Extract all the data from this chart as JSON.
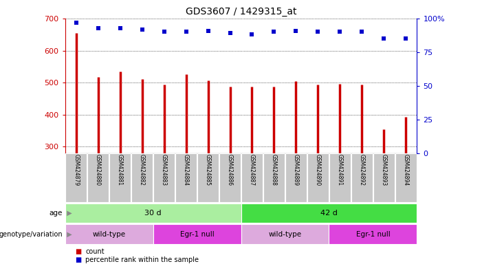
{
  "title": "GDS3607 / 1429315_at",
  "samples": [
    "GSM424879",
    "GSM424880",
    "GSM424881",
    "GSM424882",
    "GSM424883",
    "GSM424884",
    "GSM424885",
    "GSM424886",
    "GSM424887",
    "GSM424888",
    "GSM424889",
    "GSM424890",
    "GSM424891",
    "GSM424892",
    "GSM424893",
    "GSM424894"
  ],
  "counts": [
    655,
    517,
    535,
    510,
    493,
    527,
    507,
    487,
    487,
    488,
    505,
    493,
    497,
    494,
    355,
    393
  ],
  "percentile_ranks": [
    97,
    93,
    93,
    92,
    90,
    90,
    91,
    89,
    88,
    90,
    91,
    90,
    90,
    90,
    85,
    85
  ],
  "ylim_left": [
    280,
    700
  ],
  "ylim_right": [
    0,
    100
  ],
  "yticks_left": [
    300,
    400,
    500,
    600,
    700
  ],
  "yticks_right": [
    0,
    25,
    50,
    75,
    100
  ],
  "bar_color": "#cc0000",
  "dot_color": "#0000cc",
  "age_groups": [
    {
      "label": "30 d",
      "start": 0,
      "end": 8,
      "color": "#aaeea0"
    },
    {
      "label": "42 d",
      "start": 8,
      "end": 16,
      "color": "#44dd44"
    }
  ],
  "genotype_groups": [
    {
      "label": "wild-type",
      "start": 0,
      "end": 4,
      "color": "#ddaadd"
    },
    {
      "label": "Egr-1 null",
      "start": 4,
      "end": 8,
      "color": "#dd44dd"
    },
    {
      "label": "wild-type",
      "start": 8,
      "end": 12,
      "color": "#ddaadd"
    },
    {
      "label": "Egr-1 null",
      "start": 12,
      "end": 16,
      "color": "#dd44dd"
    }
  ],
  "legend_count_label": "count",
  "legend_pct_label": "percentile rank within the sample",
  "tick_label_bg": "#c8c8c8",
  "title_fontsize": 10,
  "axis_tick_fontsize": 8,
  "axis_label_color_left": "#cc0000",
  "axis_label_color_right": "#0000cc",
  "label_fontsize": 6,
  "row_label_fontsize": 7.5,
  "row_text_fontsize": 8
}
